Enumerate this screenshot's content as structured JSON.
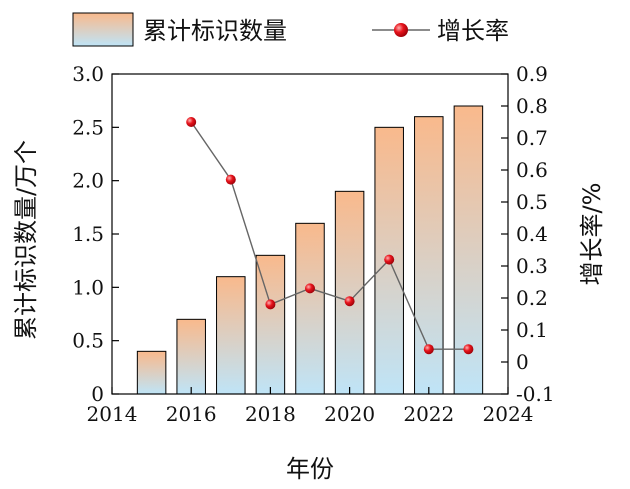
{
  "chart_data": {
    "type": "bar",
    "x": [
      2015,
      2016,
      2017,
      2018,
      2019,
      2020,
      2021,
      2022,
      2023
    ],
    "series": [
      {
        "name": "累计标识数量",
        "type": "bar",
        "axis": "left",
        "values": [
          0.4,
          0.7,
          1.1,
          1.3,
          1.6,
          1.9,
          2.5,
          2.6,
          2.7
        ]
      },
      {
        "name": "增长率",
        "type": "line",
        "axis": "right",
        "x": [
          2016,
          2017,
          2018,
          2019,
          2020,
          2021,
          2022,
          2023
        ],
        "values": [
          0.75,
          0.57,
          0.18,
          0.23,
          0.19,
          0.32,
          0.04,
          0.04
        ]
      }
    ],
    "xlabel": "年份",
    "ylabel": "累计标识数量/万个",
    "y2label": "增长率/%",
    "xlim": [
      2014,
      2024
    ],
    "ylim": [
      0,
      3.0
    ],
    "y2lim": [
      -0.1,
      0.9
    ],
    "xticks": [
      "2014",
      "2016",
      "2018",
      "2020",
      "2022",
      "2024"
    ],
    "yticks": [
      "0",
      "0.5",
      "1.0",
      "1.5",
      "2.0",
      "2.5",
      "3.0"
    ],
    "y2ticks": [
      "-0.1",
      "0",
      "0.1",
      "0.2",
      "0.3",
      "0.4",
      "0.5",
      "0.6",
      "0.7",
      "0.8",
      "0.9"
    ],
    "legend_position": "top",
    "grid": false,
    "colors": {
      "bar_top": "#f9b98c",
      "bar_bottom": "#bfe4f7",
      "line": "#666666",
      "marker": "#e8141c"
    }
  }
}
